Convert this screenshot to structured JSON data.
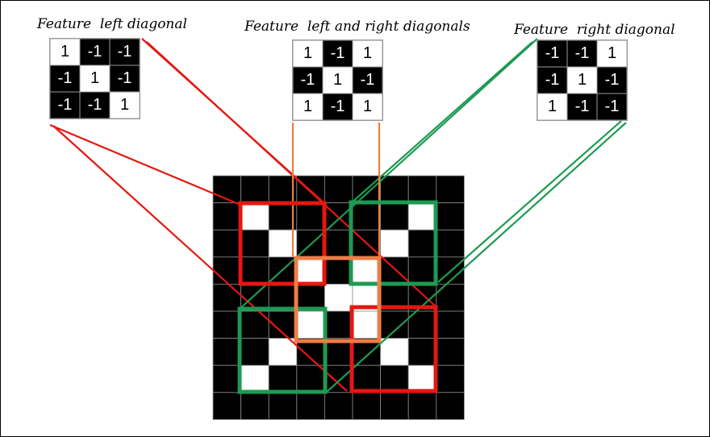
{
  "features": [
    {
      "id": "left",
      "title": "Feature  left diagonal",
      "kernel": [
        [
          1,
          -1,
          -1
        ],
        [
          -1,
          1,
          -1
        ],
        [
          -1,
          -1,
          1
        ]
      ]
    },
    {
      "id": "both",
      "title": "Feature  left and right diagonals",
      "kernel": [
        [
          1,
          -1,
          1
        ],
        [
          -1,
          1,
          -1
        ],
        [
          1,
          -1,
          1
        ]
      ]
    },
    {
      "id": "right",
      "title": "Feature  right diagonal",
      "kernel": [
        [
          -1,
          -1,
          1
        ],
        [
          -1,
          1,
          -1
        ],
        [
          1,
          -1,
          -1
        ]
      ]
    }
  ],
  "input_image": {
    "white_cells": [
      [
        1,
        1
      ],
      [
        2,
        2
      ],
      [
        3,
        3
      ],
      [
        4,
        4
      ],
      [
        4,
        5
      ],
      [
        5,
        5
      ],
      [
        6,
        6
      ],
      [
        7,
        7
      ],
      [
        1,
        7
      ],
      [
        2,
        6
      ],
      [
        3,
        5
      ],
      [
        5,
        3
      ],
      [
        6,
        2
      ],
      [
        7,
        1
      ]
    ]
  },
  "colors": {
    "left_diagonal": "#e5170f",
    "right_diagonal": "#1d9a52",
    "both_diagonals": "#ef7d45",
    "pixel_dark": "#000000",
    "pixel_light": "#ffffff"
  }
}
